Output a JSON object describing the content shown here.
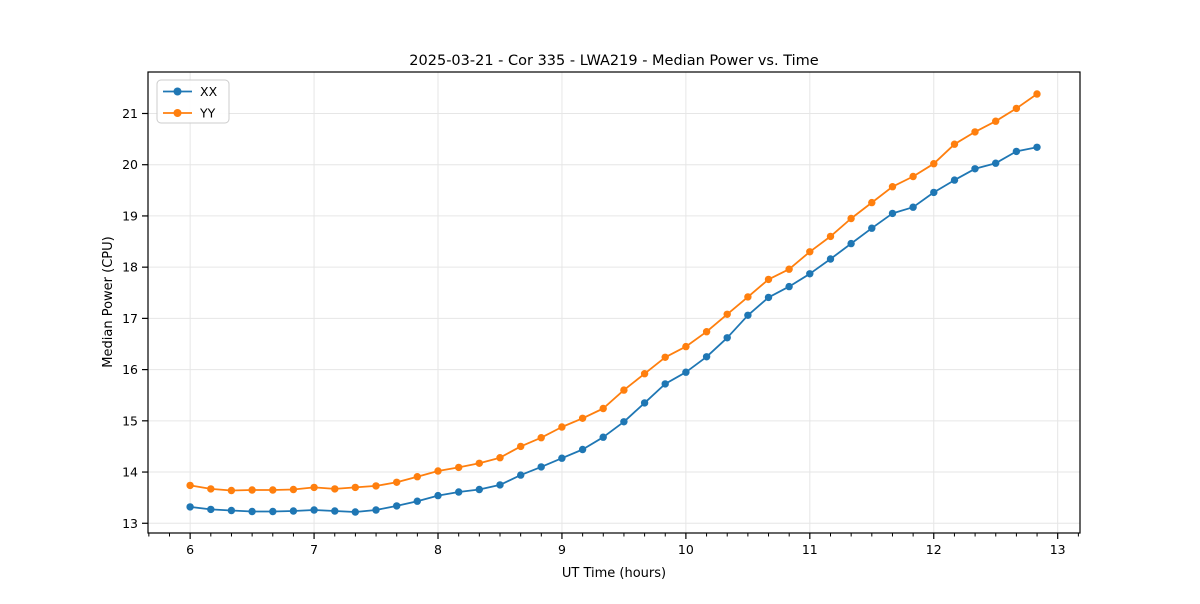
{
  "chart_data": {
    "type": "line",
    "title": "2025-03-21 - Cor 335 - LWA219 - Median Power vs. Time",
    "xlabel": "UT Time (hours)",
    "ylabel": "Median Power (CPU)",
    "legend_position": "upper left",
    "grid": true,
    "xlim": [
      5.66,
      13.18
    ],
    "ylim": [
      12.81,
      21.81
    ],
    "x_ticks": [
      6,
      7,
      8,
      9,
      10,
      11,
      12,
      13
    ],
    "y_ticks": [
      13,
      14,
      15,
      16,
      17,
      18,
      19,
      20,
      21
    ],
    "x_minor_tick_step": 0.16667,
    "x": [
      6.0,
      6.167,
      6.333,
      6.5,
      6.667,
      6.833,
      7.0,
      7.167,
      7.333,
      7.5,
      7.667,
      7.833,
      8.0,
      8.167,
      8.333,
      8.5,
      8.667,
      8.833,
      9.0,
      9.167,
      9.333,
      9.5,
      9.667,
      9.833,
      10.0,
      10.167,
      10.333,
      10.5,
      10.667,
      10.833,
      11.0,
      11.167,
      11.333,
      11.5,
      11.667,
      11.833,
      12.0,
      12.167,
      12.333,
      12.5,
      12.667,
      12.833
    ],
    "series": [
      {
        "name": "XX",
        "color": "#1f77b4",
        "marker": "circle",
        "values": [
          13.32,
          13.27,
          13.25,
          13.23,
          13.23,
          13.24,
          13.26,
          13.24,
          13.22,
          13.26,
          13.34,
          13.43,
          13.54,
          13.61,
          13.66,
          13.75,
          13.94,
          14.1,
          14.27,
          14.44,
          14.68,
          14.98,
          15.35,
          15.72,
          15.95,
          16.25,
          16.62,
          17.06,
          17.41,
          17.62,
          17.87,
          18.16,
          18.46,
          18.76,
          19.05,
          19.17,
          19.46,
          19.7,
          19.92,
          20.03,
          20.26,
          20.34
        ]
      },
      {
        "name": "YY",
        "color": "#ff7f0e",
        "marker": "circle",
        "values": [
          13.74,
          13.67,
          13.64,
          13.65,
          13.65,
          13.66,
          13.7,
          13.67,
          13.7,
          13.73,
          13.8,
          13.91,
          14.02,
          14.09,
          14.17,
          14.28,
          14.5,
          14.67,
          14.88,
          15.05,
          15.24,
          15.6,
          15.92,
          16.24,
          16.45,
          16.74,
          17.08,
          17.42,
          17.76,
          17.96,
          18.3,
          18.6,
          18.95,
          19.26,
          19.57,
          19.77,
          20.02,
          20.4,
          20.64,
          20.85,
          21.1,
          21.38
        ]
      }
    ]
  },
  "colors": {
    "background": "#ffffff",
    "grid": "#e6e6e6",
    "spine": "#000000",
    "tick": "#000000",
    "legend_border": "#cccccc",
    "legend_background": "#ffffff"
  }
}
